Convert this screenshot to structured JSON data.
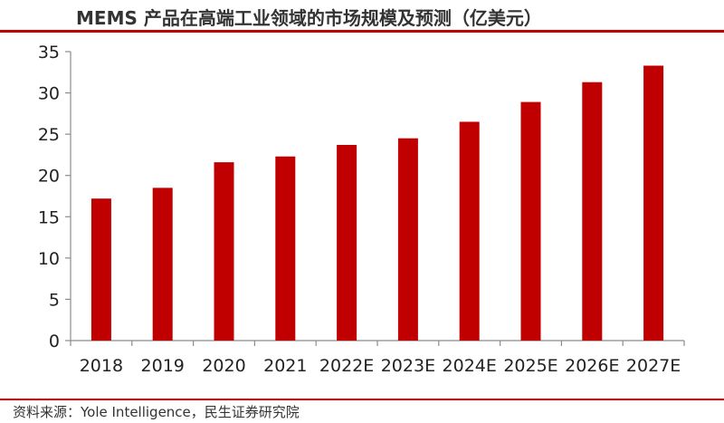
{
  "chart_data": {
    "type": "bar",
    "title": "MEMS 产品在高端工业领域的市场规模及预测（亿美元）",
    "categories": [
      "2018",
      "2019",
      "2020",
      "2021",
      "2022E",
      "2023E",
      "2024E",
      "2025E",
      "2026E",
      "2027E"
    ],
    "values": [
      17.2,
      18.5,
      21.6,
      22.3,
      23.7,
      24.5,
      26.5,
      28.9,
      31.3,
      33.3
    ],
    "xlabel": "",
    "ylabel": "",
    "ylim": [
      0,
      35
    ],
    "yticks": [
      0,
      5,
      10,
      15,
      20,
      25,
      30,
      35
    ],
    "grid": false,
    "legend": "none",
    "colors": {
      "bar": "#c00000",
      "axis": "#8c8c8c",
      "accent": "#c00000"
    }
  },
  "source_note": "资料来源：Yole Intelligence，民生证券研究院"
}
